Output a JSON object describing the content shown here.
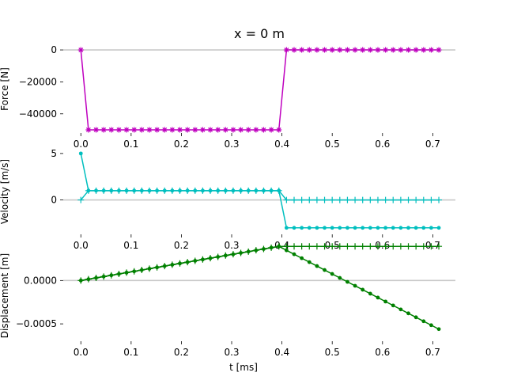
{
  "figure_title": "x = 0 m",
  "colors": {
    "force": "#bf00bf",
    "velocity": "#00bfbf",
    "displacement": "#008000",
    "zero_line": "#c8c8c8",
    "axis": "#000000"
  },
  "chart_data": [
    {
      "type": "line",
      "panel": "force",
      "ylabel": "Force [N]",
      "xlabel": "",
      "xlim": [
        -0.035,
        0.745
      ],
      "ylim": [
        -52000,
        3000
      ],
      "xticks": [
        0.0,
        0.1,
        0.2,
        0.3,
        0.4,
        0.5,
        0.6,
        0.7
      ],
      "xtick_labels": [
        "0.0",
        "0.1",
        "0.2",
        "0.3",
        "0.4",
        "0.5",
        "0.6",
        "0.7"
      ],
      "yticks": [
        0,
        -20000,
        -40000
      ],
      "ytick_labels": [
        "0",
        "−20000",
        "−40000"
      ],
      "zero_line": true,
      "dt": 0.01515,
      "series": [
        {
          "name": "",
          "marker": "star",
          "values": [
            0,
            -50000,
            -50000,
            -50000,
            -50000,
            -50000,
            -50000,
            -50000,
            -50000,
            -50000,
            -50000,
            -50000,
            -50000,
            -50000,
            -50000,
            -50000,
            -50000,
            -50000,
            -50000,
            -50000,
            -50000,
            -50000,
            -50000,
            -50000,
            -50000,
            -50000,
            -50000,
            0,
            0,
            0,
            0,
            0,
            0,
            0,
            0,
            0,
            0,
            0,
            0,
            0,
            0,
            0,
            0,
            0,
            0,
            0,
            0,
            0
          ]
        }
      ]
    },
    {
      "type": "line",
      "panel": "velocity",
      "ylabel": "Velocity [m/s]",
      "xlabel": "",
      "xlim": [
        -0.035,
        0.745
      ],
      "ylim": [
        -3.7,
        5.5
      ],
      "xticks": [
        0.0,
        0.1,
        0.2,
        0.3,
        0.4,
        0.5,
        0.6,
        0.7
      ],
      "xtick_labels": [
        "0.0",
        "0.1",
        "0.2",
        "0.3",
        "0.4",
        "0.5",
        "0.6",
        "0.7"
      ],
      "yticks": [
        5,
        0
      ],
      "ytick_labels": [
        "5",
        "0"
      ],
      "zero_line": true,
      "dt": 0.01515,
      "series": [
        {
          "name": "",
          "marker": "dot",
          "values": [
            5,
            1,
            1,
            1,
            1,
            1,
            1,
            1,
            1,
            1,
            1,
            1,
            1,
            1,
            1,
            1,
            1,
            1,
            1,
            1,
            1,
            1,
            1,
            1,
            1,
            1,
            1,
            -3,
            -3,
            -3,
            -3,
            -3,
            -3,
            -3,
            -3,
            -3,
            -3,
            -3,
            -3,
            -3,
            -3,
            -3,
            -3,
            -3,
            -3,
            -3,
            -3,
            -3
          ]
        },
        {
          "name": "",
          "marker": "plus",
          "values": [
            0,
            1,
            1,
            1,
            1,
            1,
            1,
            1,
            1,
            1,
            1,
            1,
            1,
            1,
            1,
            1,
            1,
            1,
            1,
            1,
            1,
            1,
            1,
            1,
            1,
            1,
            1,
            0,
            0,
            0,
            0,
            0,
            0,
            0,
            0,
            0,
            0,
            0,
            0,
            0,
            0,
            0,
            0,
            0,
            0,
            0,
            0,
            0
          ]
        }
      ]
    },
    {
      "type": "line",
      "panel": "displacement",
      "ylabel": "Displacement [m]",
      "xlabel": "t [ms]",
      "xlim": [
        -0.035,
        0.745
      ],
      "ylim": [
        -0.0007,
        0.00035
      ],
      "xticks": [
        0.0,
        0.1,
        0.2,
        0.3,
        0.4,
        0.5,
        0.6,
        0.7
      ],
      "xtick_labels": [
        "0.0",
        "0.1",
        "0.2",
        "0.3",
        "0.4",
        "0.5",
        "0.6",
        "0.7"
      ],
      "yticks": [
        0.0,
        -0.0005
      ],
      "ytick_labels": [
        "0.0000",
        "−0.0005"
      ],
      "zero_line": true,
      "dt": 0.01515,
      "series": [
        {
          "name": "",
          "marker": "dot",
          "values": [
            0.0,
            1.52e-05,
            3.03e-05,
            4.55e-05,
            6.06e-05,
            7.58e-05,
            9.09e-05,
            0.0001061,
            0.0001212,
            0.0001364,
            0.0001515,
            0.0001667,
            0.0001818,
            0.000197,
            0.0002121,
            0.0002273,
            0.0002424,
            0.0002576,
            0.0002727,
            0.0002879,
            0.000303,
            0.0003182,
            0.0003333,
            0.0003485,
            0.0003636,
            0.0003788,
            0.0003939,
            0.0003485,
            0.000303,
            0.0002576,
            0.0002121,
            0.0001667,
            0.0001212,
            7.58e-05,
            3.03e-05,
            -1.52e-05,
            -6.06e-05,
            -0.0001061,
            -0.0001515,
            -0.000197,
            -0.0002424,
            -0.0002879,
            -0.0003333,
            -0.0003788,
            -0.0004242,
            -0.0004697,
            -0.0005152,
            -0.0005606
          ]
        },
        {
          "name": "",
          "marker": "plus",
          "values": [
            0.0,
            1.52e-05,
            3.03e-05,
            4.55e-05,
            6.06e-05,
            7.58e-05,
            9.09e-05,
            0.0001061,
            0.0001212,
            0.0001364,
            0.0001515,
            0.0001667,
            0.0001818,
            0.000197,
            0.0002121,
            0.0002273,
            0.0002424,
            0.0002576,
            0.0002727,
            0.0002879,
            0.000303,
            0.0003182,
            0.0003333,
            0.0003485,
            0.0003636,
            0.0003788,
            0.0003939,
            0.0003939,
            0.0003939,
            0.0003939,
            0.0003939,
            0.0003939,
            0.0003939,
            0.0003939,
            0.0003939,
            0.0003939,
            0.0003939,
            0.0003939,
            0.0003939,
            0.0003939,
            0.0003939,
            0.0003939,
            0.0003939,
            0.0003939,
            0.0003939,
            0.0003939,
            0.0003939,
            0.0003939
          ]
        }
      ]
    }
  ]
}
